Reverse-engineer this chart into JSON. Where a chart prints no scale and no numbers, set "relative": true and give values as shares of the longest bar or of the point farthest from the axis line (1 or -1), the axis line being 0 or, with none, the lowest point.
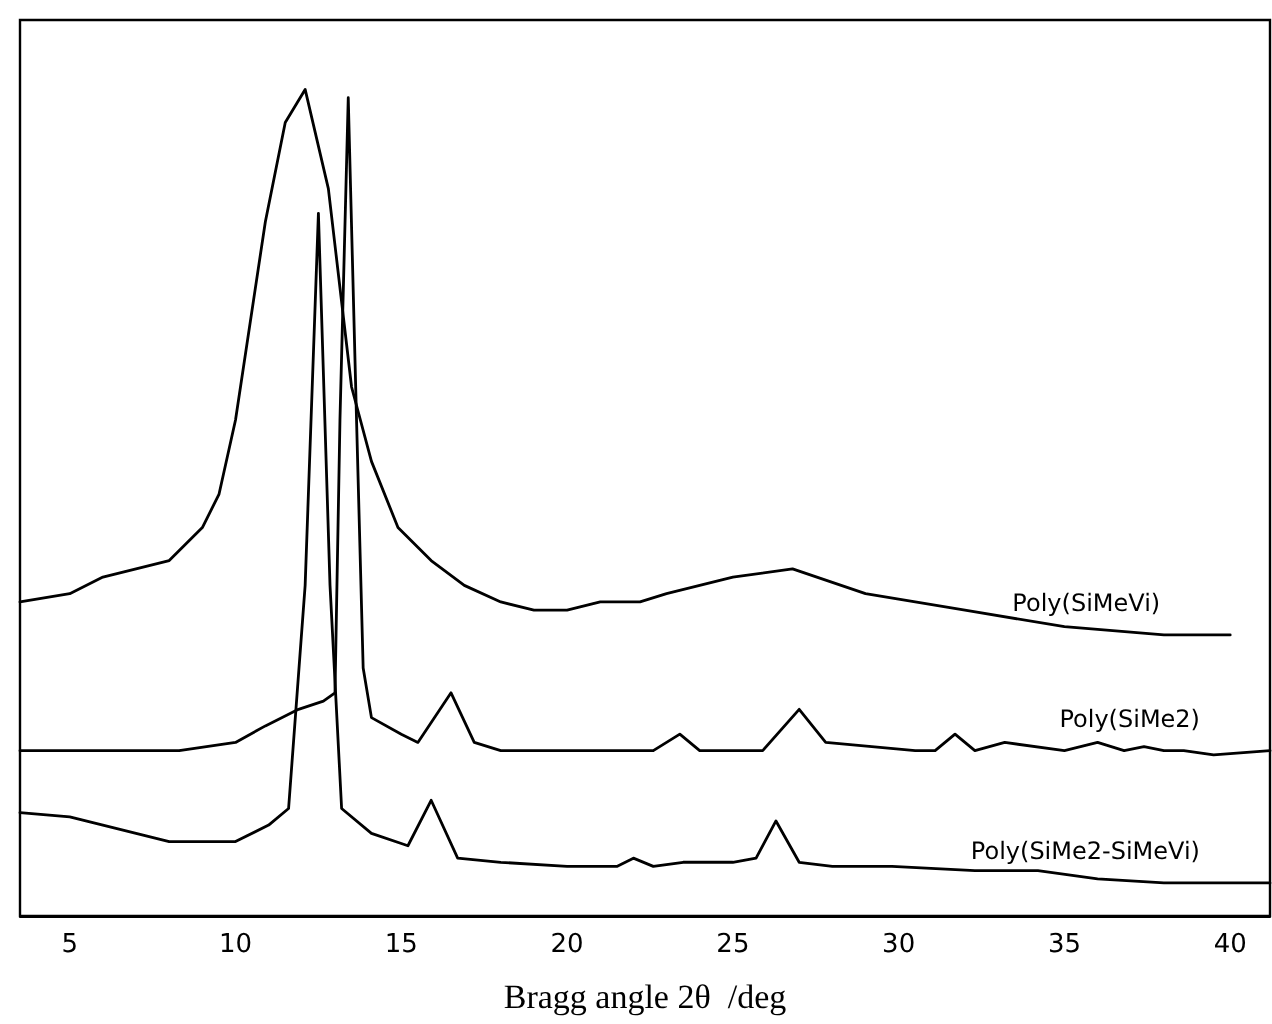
{
  "chart_data": {
    "type": "line",
    "relative": true,
    "xlabel": "Bragg angle 2θ  /deg",
    "xlim": [
      3.5,
      41.2
    ],
    "xticks": [
      5,
      10,
      15,
      20,
      25,
      30,
      35,
      40
    ],
    "marker": "none",
    "line_style": "solid",
    "grid": false,
    "legend": false,
    "series": [
      {
        "name": "Poly(SiMeVi)",
        "color": "#000000",
        "x": [
          3.5,
          5,
          6,
          7,
          8,
          9,
          9.5,
          10,
          10.9,
          11.5,
          12.1,
          12.8,
          13.5,
          14.1,
          14.9,
          15.9,
          16.9,
          18,
          19,
          20,
          21,
          22.2,
          23,
          25,
          26.8,
          29,
          32,
          35,
          38,
          40
        ],
        "values": [
          0.38,
          0.39,
          0.41,
          0.42,
          0.43,
          0.47,
          0.51,
          0.6,
          0.84,
          0.96,
          1.0,
          0.88,
          0.64,
          0.55,
          0.47,
          0.43,
          0.4,
          0.38,
          0.37,
          0.37,
          0.38,
          0.38,
          0.39,
          0.41,
          0.42,
          0.39,
          0.37,
          0.35,
          0.34,
          0.34
        ]
      },
      {
        "name": "Poly(SiMe2)",
        "color": "#000000",
        "x": [
          3.5,
          7,
          8.3,
          10,
          10.9,
          11.9,
          12.65,
          13.0,
          13.15,
          13.4,
          13.65,
          13.85,
          14.1,
          15,
          15.5,
          16.5,
          17.2,
          18,
          20,
          22,
          22.6,
          23.4,
          24,
          25.9,
          27,
          27.8,
          30.5,
          31.1,
          31.7,
          32.3,
          33.2,
          35,
          36,
          36.8,
          37.4,
          38,
          38.6,
          39.5,
          41.2
        ],
        "values": [
          0.2,
          0.2,
          0.2,
          0.21,
          0.23,
          0.25,
          0.26,
          0.27,
          0.6,
          0.99,
          0.6,
          0.3,
          0.24,
          0.22,
          0.21,
          0.27,
          0.21,
          0.2,
          0.2,
          0.2,
          0.2,
          0.22,
          0.2,
          0.2,
          0.25,
          0.21,
          0.2,
          0.2,
          0.22,
          0.2,
          0.21,
          0.2,
          0.21,
          0.2,
          0.205,
          0.2,
          0.2,
          0.195,
          0.2
        ]
      },
      {
        "name": "Poly(SiMe2-SiMeVi)",
        "color": "#000000",
        "x": [
          3.5,
          5,
          6,
          7,
          8,
          9,
          10,
          11,
          11.6,
          12.1,
          12.5,
          12.85,
          13.2,
          14.1,
          15.2,
          15.9,
          16.7,
          18,
          20,
          21.5,
          22,
          22.6,
          23.5,
          25,
          25.7,
          26.3,
          27,
          28,
          29.8,
          32.3,
          34.2,
          36,
          38,
          41.2
        ],
        "values": [
          0.125,
          0.12,
          0.11,
          0.1,
          0.09,
          0.09,
          0.09,
          0.11,
          0.13,
          0.4,
          0.85,
          0.4,
          0.13,
          0.1,
          0.085,
          0.14,
          0.07,
          0.065,
          0.06,
          0.06,
          0.07,
          0.06,
          0.065,
          0.065,
          0.07,
          0.115,
          0.065,
          0.06,
          0.06,
          0.055,
          0.055,
          0.045,
          0.04,
          0.04
        ]
      }
    ]
  }
}
